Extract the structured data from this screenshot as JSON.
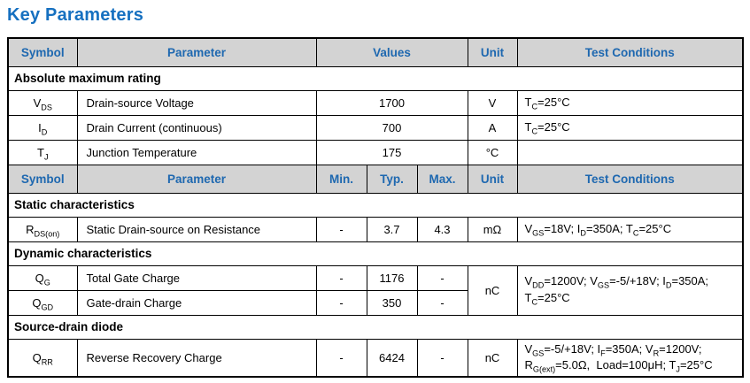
{
  "page_title": "Key Parameters",
  "colors": {
    "title_blue": "#1670C0",
    "header_blue": "#1E68B0",
    "header_bg": "#D3D3D3",
    "grid_line": "#000000"
  },
  "table": {
    "header_first": {
      "symbol": "Symbol",
      "parameter": "Parameter",
      "values": "Values",
      "unit": "Unit",
      "test": "Test Conditions"
    },
    "header_second": {
      "symbol": "Symbol",
      "parameter": "Parameter",
      "min": "Min.",
      "typ": "Typ.",
      "max": "Max.",
      "unit": "Unit",
      "test": "Test Conditions"
    },
    "sections": {
      "absolute_maximum_rating": "Absolute maximum rating",
      "static_characteristics": "Static characteristics",
      "dynamic_characteristics": "Dynamic characteristics",
      "source_drain_diode": "Source-drain diode"
    },
    "rows": {
      "vds": {
        "symbol": "V_{DS}",
        "parameter": "Drain-source Voltage",
        "value": "1700",
        "unit": "V",
        "test": "T_{C}=25°C"
      },
      "id": {
        "symbol": "I_{D}",
        "parameter": "Drain Current (continuous)",
        "value": "700",
        "unit": "A",
        "test": "T_{C}=25°C"
      },
      "tj": {
        "symbol": "T_{J}",
        "parameter": "Junction Temperature",
        "value": "175",
        "unit": "°C",
        "test": ""
      },
      "rdson": {
        "symbol": "R_{DS(on)}",
        "parameter": "Static Drain-source on Resistance",
        "min": "-",
        "typ": "3.7",
        "max": "4.3",
        "unit": "mΩ",
        "test": "V_{GS}=18V; I_{D}=350A; T_{C}=25°C"
      },
      "qg": {
        "symbol": "Q_{G}",
        "parameter": "Total Gate Charge",
        "min": "-",
        "typ": "1176",
        "max": "-"
      },
      "qgd": {
        "symbol": "Q_{GD}",
        "parameter": "Gate-drain Charge",
        "min": "-",
        "typ": "350",
        "max": "-"
      },
      "qg_qgd_shared": {
        "unit": "nC",
        "test": "V_{DD}=1200V; V_{GS}=-5/+18V; I_{D}=350A;\nT_{C}=25°C"
      },
      "qrr": {
        "symbol": "Q_{RR}",
        "parameter": "Reverse Recovery Charge",
        "min": "-",
        "typ": "6424",
        "max": "-",
        "unit": "nC",
        "test": "V_{GS}=-5/+18V; I_{F}=350A; V_{R}=1200V;\nR_{G(ext)}=5.0Ω,  Load=100μH; T_{J}=25°C"
      }
    }
  }
}
